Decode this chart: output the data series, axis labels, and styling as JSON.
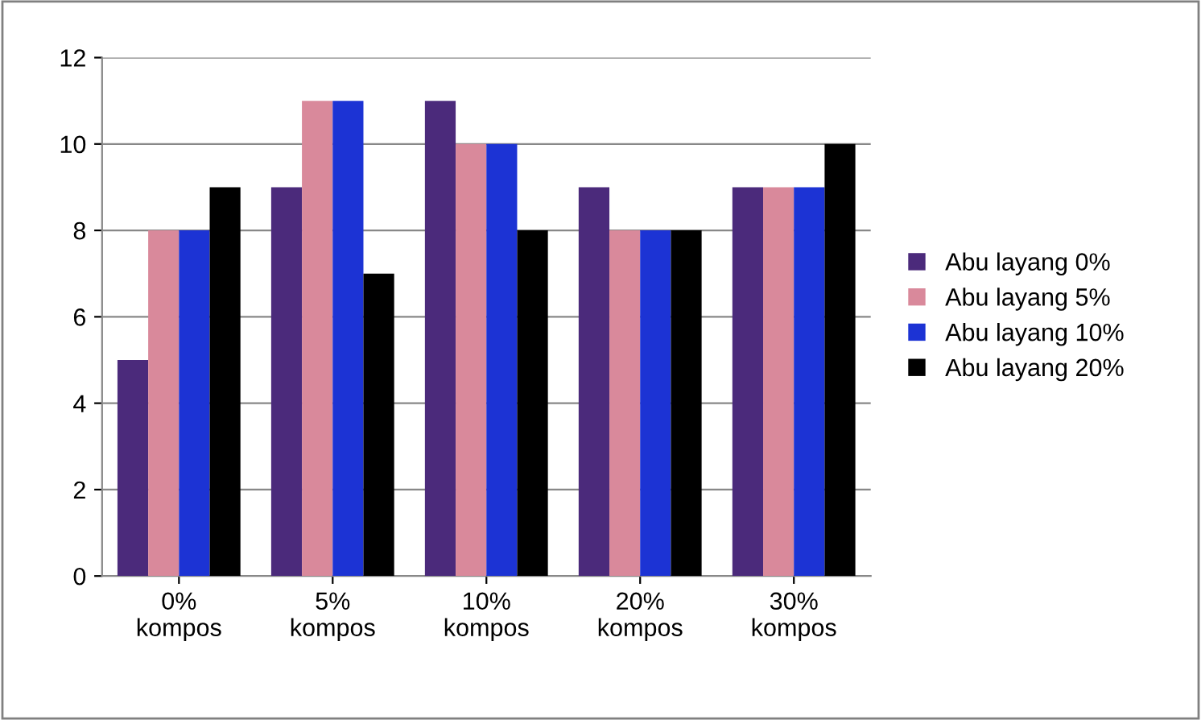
{
  "chart_data": {
    "type": "bar",
    "categories": [
      "0%\nkompos",
      "5%\nkompos",
      "10%\nkompos",
      "20%\nkompos",
      "30%\nkompos"
    ],
    "series": [
      {
        "name": "Abu layang 0%",
        "color": "#4b2a7b",
        "values": [
          5,
          9,
          11,
          9,
          9
        ]
      },
      {
        "name": "Abu layang 5%",
        "color": "#d9899b",
        "values": [
          8,
          11,
          10,
          8,
          9
        ]
      },
      {
        "name": "Abu layang 10%",
        "color": "#1c33d4",
        "values": [
          8,
          11,
          10,
          8,
          9
        ]
      },
      {
        "name": "Abu layang 20%",
        "color": "#000000",
        "values": [
          9,
          7,
          8,
          8,
          10
        ]
      }
    ],
    "ylim": [
      0,
      12
    ],
    "yticks": [
      0,
      2,
      4,
      6,
      8,
      10,
      12
    ],
    "grid": "y",
    "legend": "right"
  }
}
